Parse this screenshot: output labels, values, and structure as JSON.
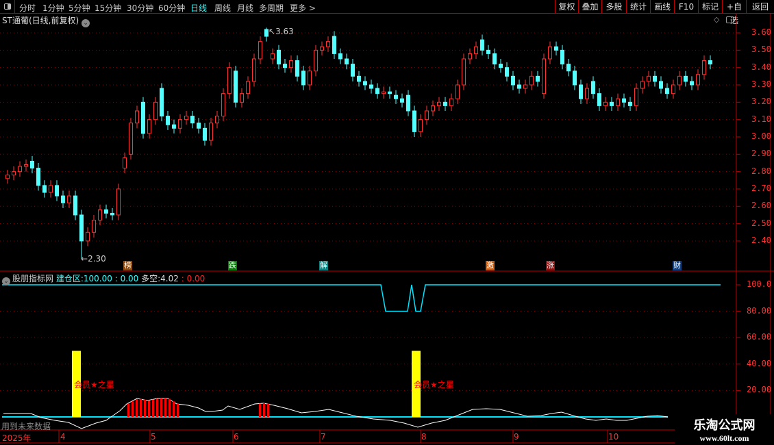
{
  "toolbar": {
    "periods": [
      "分时",
      "1分钟",
      "5分钟",
      "15分钟",
      "30分钟",
      "60分钟",
      "日线",
      "周线",
      "月线",
      "多周期",
      "更多 >"
    ],
    "active_period": "日线",
    "right_buttons": [
      "复权",
      "叠加",
      "多股",
      "统计",
      "画线",
      "F10",
      "标记",
      "+自选",
      "返回"
    ]
  },
  "chart": {
    "title": "ST通葡(日线,前复权)",
    "price_ticks": [
      "3.60",
      "3.50",
      "3.40",
      "3.30",
      "3.20",
      "3.10",
      "3.00",
      "2.90",
      "2.80",
      "2.70",
      "2.60",
      "2.50",
      "2.40"
    ],
    "high_marker": "3.63",
    "low_marker": "2.30",
    "colors": {
      "up": "#ff3232",
      "down": "#54ffff",
      "flat": "#ffffff",
      "grid": "#8b0000"
    },
    "opens": [
      2.76,
      2.78,
      2.8,
      2.83,
      2.86,
      2.82,
      2.72,
      2.68,
      2.72,
      2.66,
      2.62,
      2.66,
      2.55,
      2.4,
      2.45,
      2.52,
      2.58,
      2.56,
      2.55,
      2.82,
      2.9,
      3.08,
      3.2,
      3.02,
      3.1,
      3.28,
      3.12,
      3.07,
      3.05,
      3.1,
      3.12,
      3.08,
      3.05,
      2.98,
      3.08,
      3.12,
      3.25,
      3.38,
      3.2,
      3.25,
      3.32,
      3.45,
      3.62,
      3.45,
      3.5,
      3.42,
      3.4,
      3.44,
      3.38,
      3.3,
      3.38,
      3.5,
      3.52,
      3.58,
      3.48,
      3.45,
      3.42,
      3.35,
      3.32,
      3.3,
      3.28,
      3.25,
      3.26,
      3.24,
      3.22,
      3.24,
      3.15,
      3.03,
      3.1,
      3.15,
      3.18,
      3.2,
      3.18,
      3.22,
      3.3,
      3.45,
      3.48,
      3.56,
      3.5,
      3.48,
      3.42,
      3.4,
      3.35,
      3.3,
      3.28,
      3.3,
      3.35,
      3.25,
      3.45,
      3.52,
      3.5,
      3.42,
      3.38,
      3.3,
      3.22,
      3.32,
      3.25,
      3.18,
      3.2,
      3.18,
      3.22,
      3.2,
      3.18,
      3.28,
      3.32,
      3.35,
      3.32,
      3.28,
      3.25,
      3.3,
      3.35,
      3.32,
      3.3,
      3.36,
      3.44
    ],
    "closes": [
      2.78,
      2.8,
      2.83,
      2.84,
      2.82,
      2.72,
      2.68,
      2.72,
      2.66,
      2.62,
      2.66,
      2.55,
      2.4,
      2.45,
      2.52,
      2.58,
      2.56,
      2.55,
      2.7,
      2.88,
      3.08,
      3.15,
      3.02,
      3.1,
      3.2,
      3.12,
      3.07,
      3.05,
      3.1,
      3.12,
      3.08,
      3.05,
      2.98,
      3.08,
      3.12,
      3.25,
      3.4,
      3.2,
      3.25,
      3.32,
      3.45,
      3.55,
      3.58,
      3.48,
      3.42,
      3.4,
      3.44,
      3.35,
      3.3,
      3.38,
      3.5,
      3.52,
      3.55,
      3.48,
      3.45,
      3.42,
      3.35,
      3.32,
      3.3,
      3.28,
      3.25,
      3.26,
      3.25,
      3.22,
      3.2,
      3.15,
      3.03,
      3.1,
      3.15,
      3.18,
      3.2,
      3.18,
      3.22,
      3.3,
      3.45,
      3.48,
      3.52,
      3.5,
      3.48,
      3.42,
      3.4,
      3.35,
      3.3,
      3.28,
      3.3,
      3.35,
      3.32,
      3.45,
      3.52,
      3.5,
      3.42,
      3.38,
      3.3,
      3.22,
      3.28,
      3.25,
      3.18,
      3.2,
      3.18,
      3.22,
      3.2,
      3.18,
      3.28,
      3.32,
      3.35,
      3.32,
      3.28,
      3.25,
      3.3,
      3.35,
      3.32,
      3.3,
      3.36,
      3.44,
      3.42
    ],
    "events": [
      {
        "label": "榜",
        "color": "#8b4a10"
      },
      {
        "label": "跌",
        "color": "#0a7a0a"
      },
      {
        "label": "解",
        "color": "#0a8080"
      },
      {
        "label": "激",
        "color": "#c85a10"
      },
      {
        "label": "涨",
        "color": "#8b1010"
      },
      {
        "label": "财",
        "color": "#104080"
      }
    ]
  },
  "indicator": {
    "name": "股朋指标网",
    "field1_label": "建仓区:",
    "field1_value": "100.00",
    "field2_value": ": 0.00",
    "field3_label": "多空:",
    "field3_value": "4.02",
    "field4_value": ": 0.00",
    "ticks": [
      "100.0",
      "80.00",
      "60.00",
      "40.00",
      "20.00"
    ],
    "star_label": "会员★之星",
    "star_values": [
      50,
      50
    ],
    "warning": "用到未来数据",
    "colors": {
      "line": "#00e5ff",
      "duokong": "#ffffff",
      "bars": "#ff0000",
      "star": "#ffff00"
    }
  },
  "dates": [
    "2025年",
    "4",
    "5",
    "6",
    "7",
    "8",
    "9",
    "10"
  ],
  "watermark": {
    "name": "乐淘公式网",
    "url": "www.60lt.com"
  }
}
